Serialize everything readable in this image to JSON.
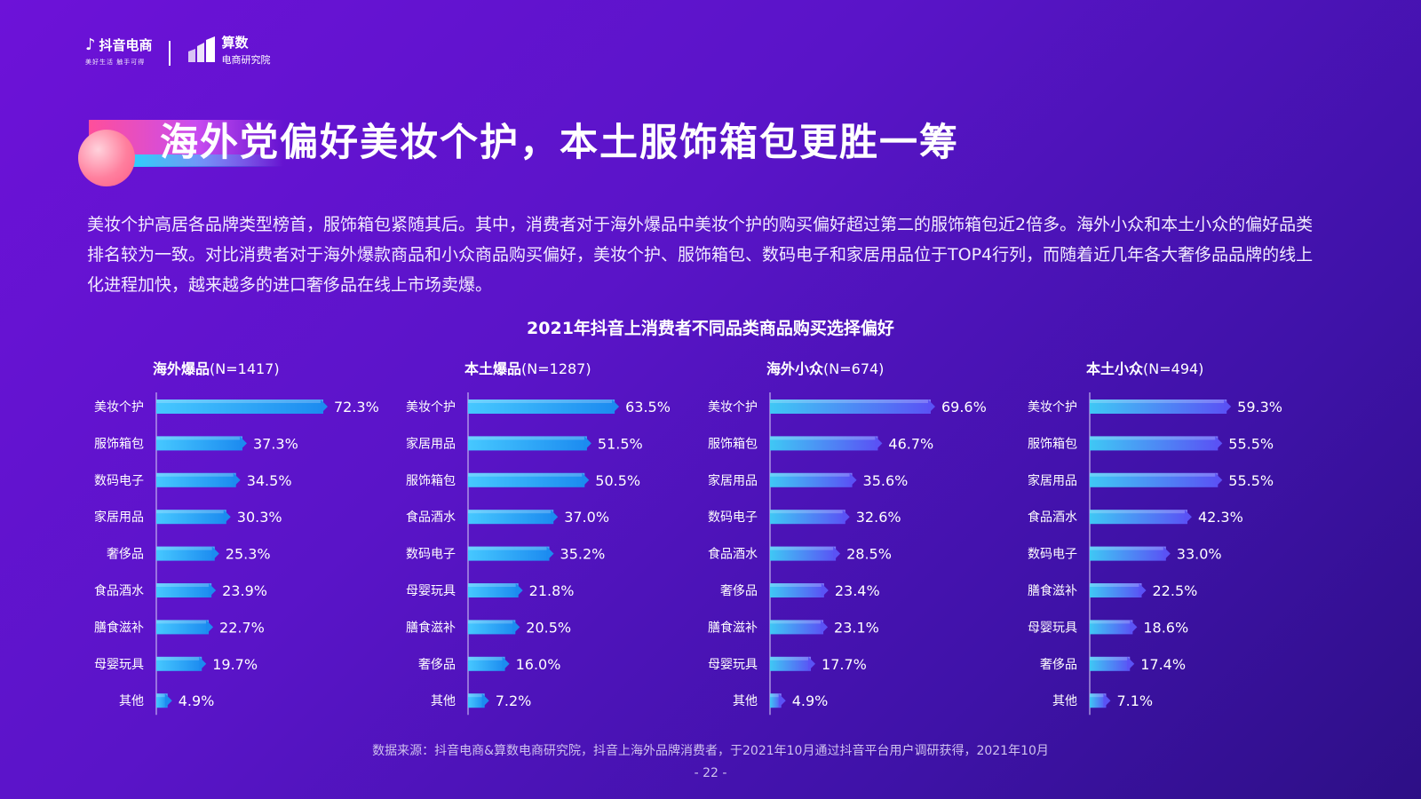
{
  "header": {
    "brand1_name": "抖音电商",
    "brand1_slogan": "美好生活 触手可得",
    "brand2_name": "算数",
    "brand2_sub": "电商研究院"
  },
  "page_title": "海外党偏好美妆个护，本土服饰箱包更胜一筹",
  "intro": "美妆个护高居各品牌类型榜首，服饰箱包紧随其后。其中，消费者对于海外爆品中美妆个护的购买偏好超过第二的服饰箱包近2倍多。海外小众和本土小众的偏好品类排名较为一致。对比消费者对于海外爆款商品和小众商品购买偏好，美妆个护、服饰箱包、数码电子和家居用品位于TOP4行列，而随着近几年各大奢侈品品牌的线上化进程加快，越来越多的进口奢侈品在线上市场卖爆。",
  "footer": {
    "source": "数据来源：抖音电商&算数电商研究院，抖音上海外品牌消费者，于2021年10月通过抖音平台用户调研获得，2021年10月",
    "page": "- 22 -"
  },
  "chart_data": {
    "title": "2021年抖音上消费者不同品类商品购买选择偏好",
    "type": "bar",
    "orientation": "horizontal",
    "value_unit": "%",
    "panels": [
      {
        "name": "海外爆品",
        "n_label": "(N=1417)",
        "color_from": "#1c8bf0",
        "color_to": "#46c8ff",
        "categories": [
          "美妆个护",
          "服饰箱包",
          "数码电子",
          "家居用品",
          "奢侈品",
          "食品酒水",
          "膳食滋补",
          "母婴玩具",
          "其他"
        ],
        "values": [
          72.3,
          37.3,
          34.5,
          30.3,
          25.3,
          23.9,
          22.7,
          19.7,
          4.9
        ],
        "labels": [
          "72.3%",
          "37.3%",
          "34.5%",
          "30.3%",
          "25.3%",
          "23.9%",
          "22.7%",
          "19.7%",
          "4.9%"
        ]
      },
      {
        "name": "本土爆品",
        "n_label": "(N=1287)",
        "color_from": "#1c8bf0",
        "color_to": "#46c8ff",
        "categories": [
          "美妆个护",
          "家居用品",
          "服饰箱包",
          "食品酒水",
          "数码电子",
          "母婴玩具",
          "膳食滋补",
          "奢侈品",
          "其他"
        ],
        "values": [
          63.5,
          51.5,
          50.5,
          37.0,
          35.2,
          21.8,
          20.5,
          16.0,
          7.2
        ],
        "labels": [
          "63.5%",
          "51.5%",
          "50.5%",
          "37.0%",
          "35.2%",
          "21.8%",
          "20.5%",
          "16.0%",
          "7.2%"
        ]
      },
      {
        "name": "海外小众",
        "n_label": "(N=674)",
        "color_from": "#5a52f5",
        "color_to": "#3fc8f5",
        "categories": [
          "美妆个护",
          "服饰箱包",
          "家居用品",
          "数码电子",
          "食品酒水",
          "奢侈品",
          "膳食滋补",
          "母婴玩具",
          "其他"
        ],
        "values": [
          69.6,
          46.7,
          35.6,
          32.6,
          28.5,
          23.4,
          23.1,
          17.7,
          4.9
        ],
        "labels": [
          "69.6%",
          "46.7%",
          "35.6%",
          "32.6%",
          "28.5%",
          "23.4%",
          "23.1%",
          "17.7%",
          "4.9%"
        ]
      },
      {
        "name": "本土小众",
        "n_label": "(N=494)",
        "color_from": "#5a52f5",
        "color_to": "#3fc8f5",
        "categories": [
          "美妆个护",
          "服饰箱包",
          "家居用品",
          "食品酒水",
          "数码电子",
          "膳食滋补",
          "母婴玩具",
          "奢侈品",
          "其他"
        ],
        "values": [
          59.3,
          55.5,
          55.5,
          42.3,
          33.0,
          22.5,
          18.6,
          17.4,
          7.1
        ],
        "labels": [
          "59.3%",
          "55.5%",
          "55.5%",
          "42.3%",
          "33.0%",
          "22.5%",
          "18.6%",
          "17.4%",
          "7.1%"
        ]
      }
    ]
  }
}
